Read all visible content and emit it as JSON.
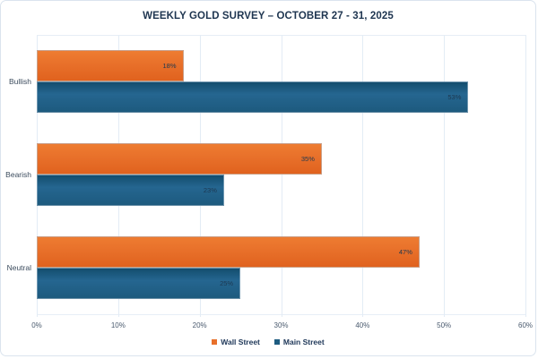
{
  "title": "WEEKLY GOLD SURVEY – OCTOBER 27 - 31, 2025",
  "colors": {
    "wall_street": "#E8702A",
    "main_street": "#1E5C80",
    "title_text": "#1E3550",
    "tick_text": "#4A5A6E",
    "gridline": "#E3ECF5",
    "card_border": "#DBE4EE",
    "value_label_text": "#1D3850"
  },
  "chart_data": {
    "type": "bar",
    "orientation": "horizontal",
    "title": "WEEKLY GOLD SURVEY – OCTOBER 27 - 31, 2025",
    "categories": [
      "Bullish",
      "Bearish",
      "Neutral"
    ],
    "series": [
      {
        "name": "Wall Street",
        "color": "#E8702A",
        "values": [
          18,
          35,
          47
        ]
      },
      {
        "name": "Main Street",
        "color": "#1E5C80",
        "values": [
          53,
          23,
          25
        ]
      }
    ],
    "value_suffix": "%",
    "x_ticks": [
      "0%",
      "10%",
      "20%",
      "30%",
      "40%",
      "50%",
      "60%"
    ],
    "xlim": [
      0,
      60
    ],
    "xlabel": "",
    "ylabel": "",
    "grid": true,
    "legend_position": "bottom"
  },
  "legend": {
    "items": [
      {
        "label": "Wall Street"
      },
      {
        "label": "Main Street"
      }
    ]
  }
}
